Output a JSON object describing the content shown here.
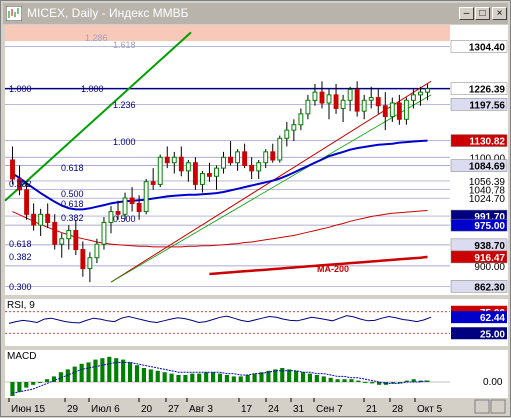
{
  "window": {
    "title": "MICEX, Daily - Индекс ММВБ"
  },
  "colors": {
    "up": "#008000",
    "down": "#cc0000",
    "ma_short": "#0000cc",
    "ma_long": "#cc0000",
    "trend": "#00a000",
    "fib": "#000080",
    "rsi": "#000080",
    "macd_hist": "#008000",
    "macd_signal": "#0000cc",
    "bg_panel": "#ffffff",
    "highlight": "#f8c8b8"
  },
  "chart_data": {
    "type": "candlestick",
    "x_labels": [
      "Июн 15",
      "29",
      "Июл 6",
      "20",
      "27",
      "Авг 3",
      "17",
      "24",
      "31",
      "Сен 7",
      "21",
      "28",
      "Окт 5"
    ],
    "price_axis_labels": [
      "1304.40",
      "1226.39",
      "1197.56",
      "1130.82",
      "1100.00",
      "1084.69",
      "1056.39",
      "1040.78",
      "1024.70",
      "991.70",
      "975.00",
      "938.70",
      "900.00",
      "862.30"
    ],
    "price_boxes": [
      {
        "value": "1304.40",
        "bg": "#ffffff",
        "fg": "#000000"
      },
      {
        "value": "1226.39",
        "bg": "#ffffff",
        "fg": "#000000"
      },
      {
        "value": "1197.56",
        "bg": "#dcdcf0",
        "fg": "#000000"
      },
      {
        "value": "1130.82",
        "bg": "#cc0000",
        "fg": "#ffffff"
      },
      {
        "value": "1084.69",
        "bg": "#dcdcf0",
        "fg": "#000000"
      },
      {
        "value": "991.70",
        "bg": "#000080",
        "fg": "#ffffff"
      },
      {
        "value": "975.00",
        "bg": "#0000cc",
        "fg": "#ffffff"
      },
      {
        "value": "938.70",
        "bg": "#dcdcf0",
        "fg": "#000000"
      },
      {
        "value": "916.47",
        "bg": "#cc0000",
        "fg": "#ffffff"
      },
      {
        "value": "862.30",
        "bg": "#dcdcf0",
        "fg": "#000000"
      }
    ],
    "y_range": [
      850,
      1340
    ],
    "fib_labels": [
      "1.286",
      "1.618",
      "1.000",
      "1.000",
      "1.236",
      "1.000",
      "0.618",
      "0.382",
      "0.500",
      "0.618",
      "0.382",
      "0.500",
      "0.618",
      "0.382",
      "0.300"
    ],
    "annotations": [
      "MA-200"
    ],
    "rsi": {
      "label": "RSI, 9",
      "levels": [
        "75.00",
        "62.44",
        "25.00"
      ],
      "values": [
        48,
        52,
        55,
        53,
        50,
        58,
        60,
        56,
        52,
        50,
        49,
        55,
        60,
        58,
        54,
        52,
        60,
        64,
        60,
        56,
        52,
        50,
        54,
        58,
        61,
        59,
        55,
        50,
        52,
        57,
        62,
        65,
        60,
        55,
        52,
        56,
        60,
        64,
        62,
        58,
        55,
        54,
        58,
        62,
        60,
        57,
        54,
        60,
        66,
        63,
        58,
        54,
        55,
        60,
        64,
        61,
        57,
        55,
        52,
        56,
        62.44
      ]
    },
    "macd": {
      "label": "MACD",
      "zero_label": "0.00",
      "histogram": [
        -10,
        -7,
        -4,
        -2,
        0,
        2,
        4,
        7,
        9,
        11,
        13,
        14,
        16,
        17,
        18,
        17,
        16,
        14,
        12,
        10,
        9,
        8,
        7,
        6,
        5,
        5,
        6,
        6,
        7,
        7,
        6,
        5,
        4,
        4,
        5,
        6,
        7,
        8,
        9,
        10,
        9,
        8,
        7,
        6,
        5,
        4,
        3,
        2,
        2,
        2,
        1,
        0,
        -1,
        -2,
        -2,
        -1,
        0,
        1,
        2,
        1,
        1
      ],
      "signal": [
        -8,
        -7,
        -6,
        -5,
        -3,
        -1,
        1,
        3,
        5,
        7,
        9,
        10,
        11,
        12,
        13,
        14,
        14,
        14,
        13,
        12,
        11,
        10,
        9,
        8,
        7,
        7,
        7,
        7,
        7,
        7,
        7,
        6,
        6,
        5,
        5,
        6,
        6,
        7,
        8,
        8,
        8,
        8,
        7,
        7,
        6,
        6,
        5,
        4,
        4,
        3,
        3,
        2,
        1,
        0,
        -1,
        -1,
        -1,
        0,
        0,
        0,
        1
      ]
    },
    "ohlc": [
      [
        1095,
        1120,
        1050,
        1060
      ],
      [
        1060,
        1085,
        1030,
        1040
      ],
      [
        1040,
        1055,
        985,
        995
      ],
      [
        995,
        1015,
        965,
        975
      ],
      [
        975,
        1005,
        955,
        995
      ],
      [
        995,
        1015,
        970,
        980
      ],
      [
        980,
        995,
        930,
        940
      ],
      [
        940,
        960,
        915,
        950
      ],
      [
        950,
        975,
        930,
        965
      ],
      [
        965,
        985,
        920,
        930
      ],
      [
        930,
        945,
        880,
        895
      ],
      [
        895,
        925,
        870,
        915
      ],
      [
        915,
        950,
        905,
        940
      ],
      [
        940,
        990,
        930,
        980
      ],
      [
        980,
        1010,
        960,
        1000
      ],
      [
        1000,
        1020,
        985,
        995
      ],
      [
        995,
        1035,
        985,
        1025
      ],
      [
        1025,
        1045,
        1000,
        1015
      ],
      [
        1015,
        1030,
        985,
        1000
      ],
      [
        1000,
        1060,
        995,
        1055
      ],
      [
        1055,
        1080,
        1040,
        1050
      ],
      [
        1050,
        1105,
        1045,
        1100
      ],
      [
        1100,
        1120,
        1080,
        1090
      ],
      [
        1090,
        1110,
        1070,
        1100
      ],
      [
        1100,
        1120,
        1065,
        1075
      ],
      [
        1075,
        1095,
        1055,
        1090
      ],
      [
        1090,
        1100,
        1040,
        1050
      ],
      [
        1050,
        1075,
        1035,
        1070
      ],
      [
        1070,
        1090,
        1055,
        1065
      ],
      [
        1065,
        1085,
        1040,
        1080
      ],
      [
        1080,
        1110,
        1070,
        1100
      ],
      [
        1100,
        1130,
        1085,
        1090
      ],
      [
        1090,
        1115,
        1075,
        1110
      ],
      [
        1110,
        1125,
        1080,
        1085
      ],
      [
        1085,
        1100,
        1060,
        1075
      ],
      [
        1075,
        1095,
        1060,
        1090
      ],
      [
        1090,
        1115,
        1080,
        1110
      ],
      [
        1110,
        1125,
        1090,
        1095
      ],
      [
        1095,
        1140,
        1090,
        1135
      ],
      [
        1135,
        1165,
        1120,
        1150
      ],
      [
        1150,
        1170,
        1130,
        1160
      ],
      [
        1160,
        1190,
        1150,
        1180
      ],
      [
        1180,
        1215,
        1170,
        1205
      ],
      [
        1205,
        1235,
        1195,
        1220
      ],
      [
        1220,
        1240,
        1190,
        1200
      ],
      [
        1200,
        1225,
        1170,
        1215
      ],
      [
        1215,
        1235,
        1180,
        1190
      ],
      [
        1190,
        1215,
        1165,
        1205
      ],
      [
        1205,
        1230,
        1185,
        1225
      ],
      [
        1225,
        1240,
        1175,
        1185
      ],
      [
        1185,
        1215,
        1170,
        1205
      ],
      [
        1205,
        1230,
        1190,
        1210
      ],
      [
        1210,
        1225,
        1180,
        1195
      ],
      [
        1195,
        1220,
        1150,
        1175
      ],
      [
        1175,
        1210,
        1165,
        1200
      ],
      [
        1200,
        1215,
        1160,
        1170
      ],
      [
        1170,
        1210,
        1160,
        1205
      ],
      [
        1205,
        1225,
        1190,
        1215
      ],
      [
        1215,
        1230,
        1195,
        1220
      ],
      [
        1220,
        1235,
        1205,
        1226.39
      ]
    ],
    "ma_short": [
      1070,
      1062,
      1052,
      1043,
      1034,
      1026,
      1018,
      1011,
      1006,
      1004,
      1004,
      1006,
      1009,
      1012,
      1015,
      1017,
      1019,
      1020,
      1021,
      1022,
      1024,
      1026,
      1028,
      1029,
      1030,
      1031,
      1031,
      1032,
      1033,
      1034,
      1036,
      1039,
      1042,
      1045,
      1048,
      1051,
      1054,
      1057,
      1061,
      1066,
      1072,
      1078,
      1084,
      1090,
      1096,
      1102,
      1106,
      1110,
      1114,
      1117,
      1119,
      1121,
      1123,
      1124,
      1125,
      1127,
      1128,
      1129,
      1130,
      1130.82
    ],
    "ma_long": [
      1000,
      994,
      988,
      982,
      976,
      971,
      966,
      961,
      957,
      953,
      950,
      947,
      944,
      942,
      940,
      939,
      938,
      937,
      936,
      936,
      935,
      935,
      935,
      935,
      935,
      936,
      936,
      937,
      937,
      938,
      939,
      940,
      941,
      943,
      944,
      946,
      948,
      950,
      952,
      954,
      956,
      959,
      962,
      965,
      968,
      971,
      975,
      978,
      982,
      985,
      988,
      991,
      993,
      995,
      997,
      998,
      999,
      1000,
      1001,
      1002
    ],
    "ma200": [
      885,
      886,
      887,
      888,
      889,
      890,
      891,
      892,
      893,
      894,
      895,
      896,
      897,
      898,
      899,
      900,
      901,
      902,
      903,
      904,
      905,
      906,
      907,
      908,
      909,
      910,
      911,
      912,
      913,
      914,
      915,
      916.47
    ]
  }
}
